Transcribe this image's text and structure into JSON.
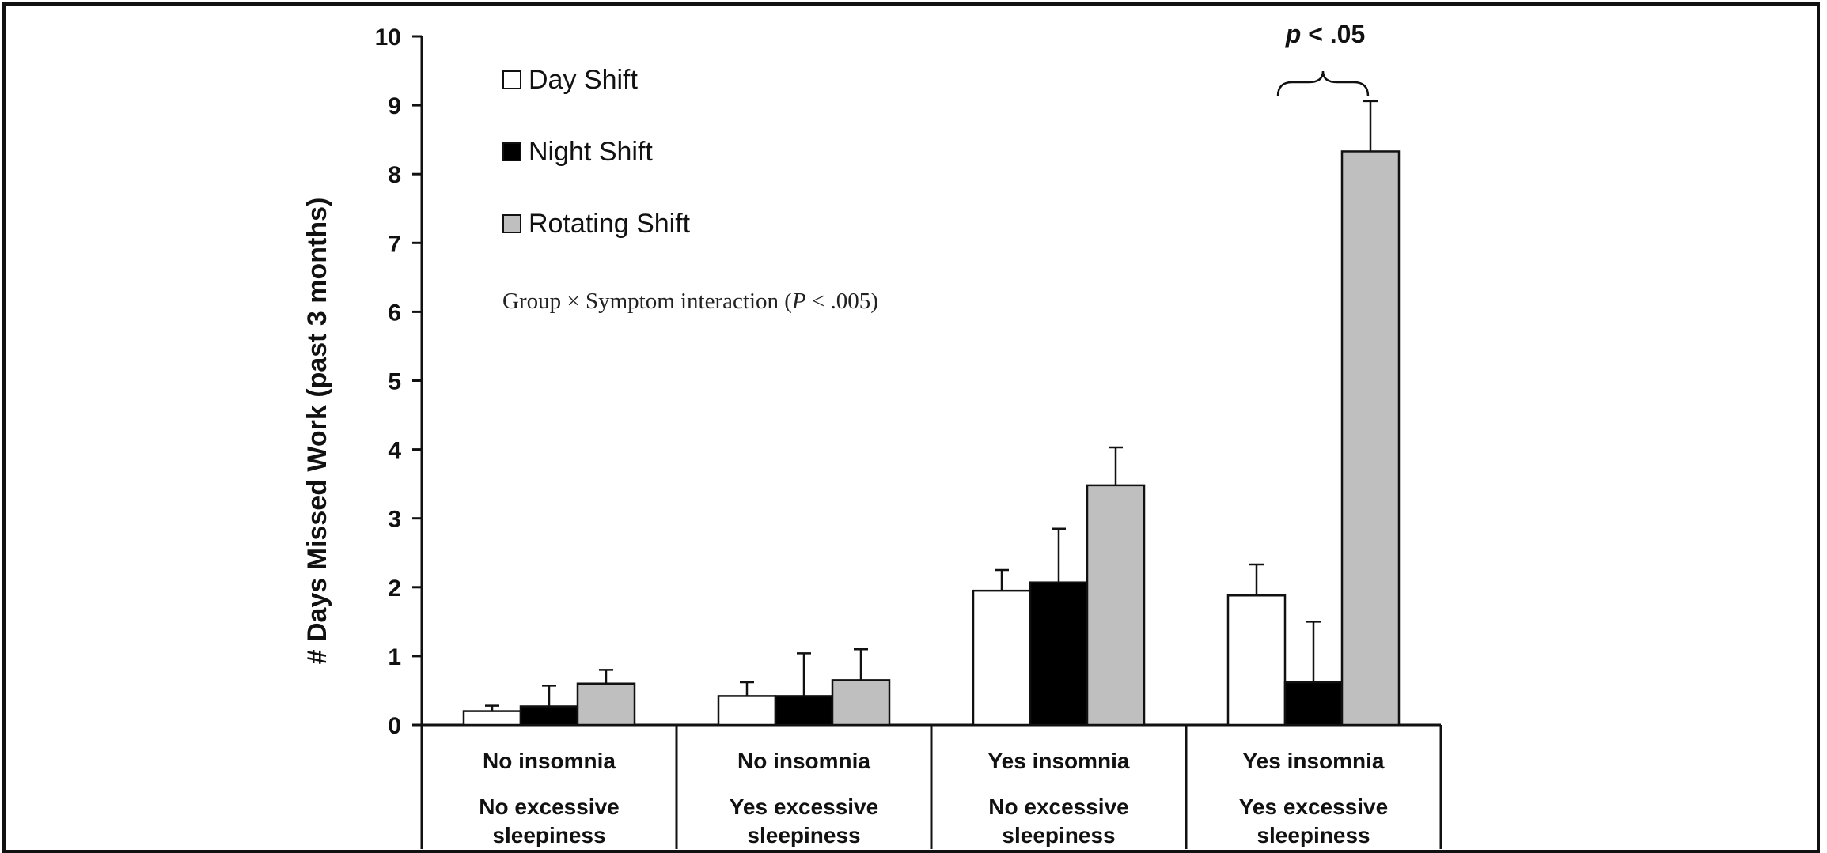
{
  "chart_data": {
    "type": "bar",
    "title": "",
    "ylabel": "# Days Missed Work (past 3 months)",
    "xlabel": "",
    "ylim": [
      0,
      10
    ],
    "yticks": [
      "0",
      "1",
      "2",
      "3",
      "4",
      "5",
      "6",
      "7",
      "8",
      "9",
      "10"
    ],
    "grid": false,
    "legend_position": "top-left",
    "categories": [
      {
        "line1": "No insomnia",
        "line2": "No excessive",
        "line3": "sleepiness"
      },
      {
        "line1": "No insomnia",
        "line2": "Yes excessive",
        "line3": "sleepiness"
      },
      {
        "line1": "Yes insomnia",
        "line2": "No excessive",
        "line3": "sleepiness"
      },
      {
        "line1": "Yes insomnia",
        "line2": "Yes excessive",
        "line3": "sleepiness"
      }
    ],
    "series": [
      {
        "name": "Day Shift",
        "color": "#ffffff",
        "values": [
          0.2,
          0.42,
          1.95,
          1.88
        ],
        "errors": [
          0.08,
          0.2,
          0.3,
          0.45
        ]
      },
      {
        "name": "Night Shift",
        "color": "#000000",
        "values": [
          0.27,
          0.42,
          2.07,
          0.62
        ],
        "errors": [
          0.3,
          0.62,
          0.78,
          0.88
        ]
      },
      {
        "name": "Rotating Shift",
        "color": "#bfbfbf",
        "values": [
          0.6,
          0.65,
          3.48,
          8.33
        ],
        "errors": [
          0.2,
          0.45,
          0.55,
          0.73
        ]
      }
    ],
    "annotations": {
      "interaction_prefix": "Group × Symptom interaction (",
      "interaction_p": "P",
      "interaction_suffix": " < .005)",
      "sig_p": "p",
      "sig_suffix": " < .05"
    }
  }
}
